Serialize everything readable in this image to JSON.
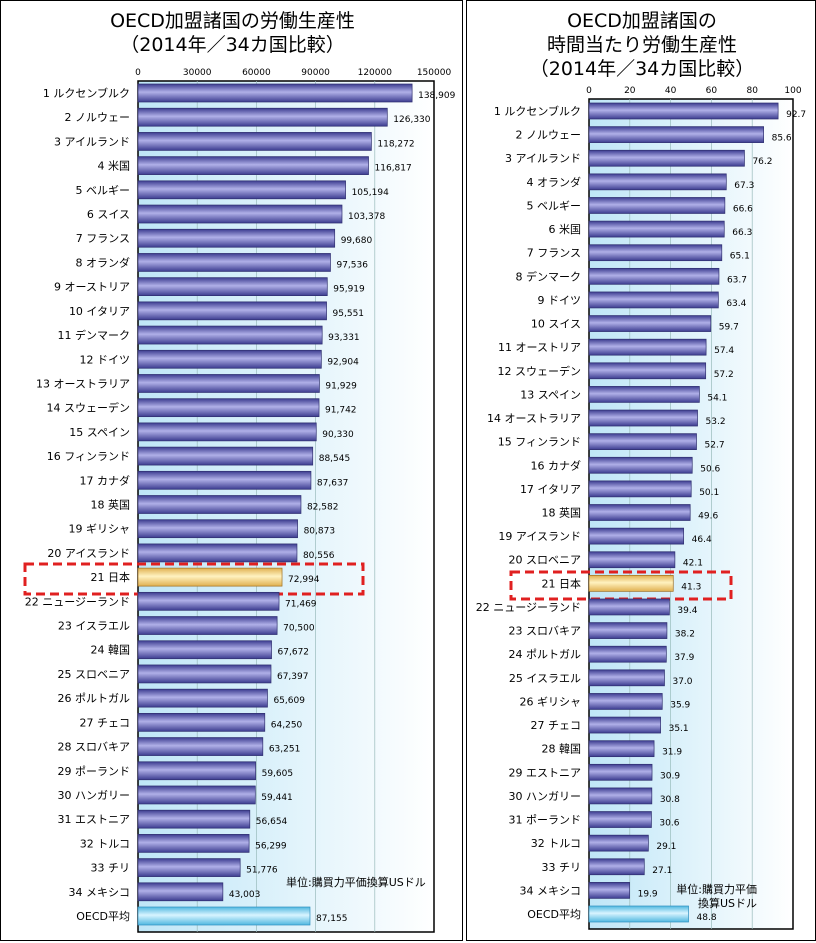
{
  "chart_data": [
    {
      "type": "bar",
      "orientation": "horizontal",
      "title": [
        "OECD加盟諸国の労働生産性",
        "（2014年／34カ国比較）"
      ],
      "xlim": [
        0,
        150000
      ],
      "xticks": [
        "0",
        "30000",
        "60000",
        "90000",
        "120000",
        "150000"
      ],
      "unit_note": [
        "単位:購買力平価換算USドル"
      ],
      "highlight": "21 日本",
      "highlight_color": "#f5d78a",
      "bar_color": "#6a6ab8",
      "avg_color": "#8fd8f0",
      "categories": [
        "1 ルクセンブルク",
        "2 ノルウェー",
        "3 アイルランド",
        "4 米国",
        "5 ベルギー",
        "6 スイス",
        "7 フランス",
        "8 オランダ",
        "9 オーストリア",
        "10 イタリア",
        "11 デンマーク",
        "12 ドイツ",
        "13 オーストラリア",
        "14 スウェーデン",
        "15 スペイン",
        "16 フィンランド",
        "17 カナダ",
        "18 英国",
        "19 ギリシャ",
        "20 アイスランド",
        "21 日本",
        "22 ニュージーランド",
        "23 イスラエル",
        "24 韓国",
        "25 スロベニア",
        "26 ポルトガル",
        "27 チェコ",
        "28 スロバキア",
        "29 ポーランド",
        "30 ハンガリー",
        "31 エストニア",
        "32 トルコ",
        "33 チリ",
        "34 メキシコ",
        "OECD平均"
      ],
      "values": [
        138909,
        126330,
        118272,
        116817,
        105194,
        103378,
        99680,
        97536,
        95919,
        95551,
        93331,
        92904,
        91929,
        91742,
        90330,
        88545,
        87637,
        82582,
        80873,
        80556,
        72994,
        71469,
        70500,
        67672,
        67397,
        65609,
        64250,
        63251,
        59605,
        59441,
        56654,
        56299,
        51776,
        43003,
        87155
      ],
      "labels": [
        "138,909",
        "126,330",
        "118,272",
        "116,817",
        "105,194",
        "103,378",
        "99,680",
        "97,536",
        "95,919",
        "95,551",
        "93,331",
        "92,904",
        "91,929",
        "91,742",
        "90,330",
        "88,545",
        "87,637",
        "82,582",
        "80,873",
        "80,556",
        "72,994",
        "71,469",
        "70,500",
        "67,672",
        "67,397",
        "65,609",
        "64,250",
        "63,251",
        "59,605",
        "59,441",
        "56,654",
        "56,299",
        "51,776",
        "43,003",
        "87,155"
      ]
    },
    {
      "type": "bar",
      "orientation": "horizontal",
      "title": [
        "OECD加盟諸国の",
        "時間当たり労働生産性",
        "（2014年／34カ国比較）"
      ],
      "xlim": [
        0,
        100
      ],
      "xticks": [
        "0",
        "20",
        "40",
        "60",
        "80",
        "100"
      ],
      "unit_note": [
        "単位:購買力平価",
        "換算USドル"
      ],
      "highlight": "21 日本",
      "highlight_color": "#f5d78a",
      "bar_color": "#6a6ab8",
      "avg_color": "#8fd8f0",
      "categories": [
        "1 ルクセンブルク",
        "2 ノルウェー",
        "3 アイルランド",
        "4 オランダ",
        "5 ベルギー",
        "6 米国",
        "7 フランス",
        "8 デンマーク",
        "9 ドイツ",
        "10 スイス",
        "11 オーストリア",
        "12 スウェーデン",
        "13 スペイン",
        "14 オーストラリア",
        "15 フィンランド",
        "16 カナダ",
        "17 イタリア",
        "18 英国",
        "19 アイスランド",
        "20 スロベニア",
        "21 日本",
        "22 ニュージーランド",
        "23 スロバキア",
        "24 ポルトガル",
        "25 イスラエル",
        "26 ギリシャ",
        "27 チェコ",
        "28 韓国",
        "29 エストニア",
        "30 ハンガリー",
        "31 ポーランド",
        "32 トルコ",
        "33 チリ",
        "34 メキシコ",
        "OECD平均"
      ],
      "values": [
        92.7,
        85.6,
        76.2,
        67.3,
        66.6,
        66.3,
        65.1,
        63.7,
        63.4,
        59.7,
        57.4,
        57.2,
        54.1,
        53.2,
        52.7,
        50.6,
        50.1,
        49.6,
        46.4,
        42.1,
        41.3,
        39.4,
        38.2,
        37.9,
        37.0,
        35.9,
        35.1,
        31.9,
        30.9,
        30.8,
        30.6,
        29.1,
        27.1,
        19.9,
        48.8
      ],
      "labels": [
        "92.7",
        "85.6",
        "76.2",
        "67.3",
        "66.6",
        "66.3",
        "65.1",
        "63.7",
        "63.4",
        "59.7",
        "57.4",
        "57.2",
        "54.1",
        "53.2",
        "52.7",
        "50.6",
        "50.1",
        "49.6",
        "46.4",
        "42.1",
        "41.3",
        "39.4",
        "38.2",
        "37.9",
        "37.0",
        "35.9",
        "35.1",
        "31.9",
        "30.9",
        "30.8",
        "30.6",
        "29.1",
        "27.1",
        "19.9",
        "48.8"
      ]
    }
  ]
}
